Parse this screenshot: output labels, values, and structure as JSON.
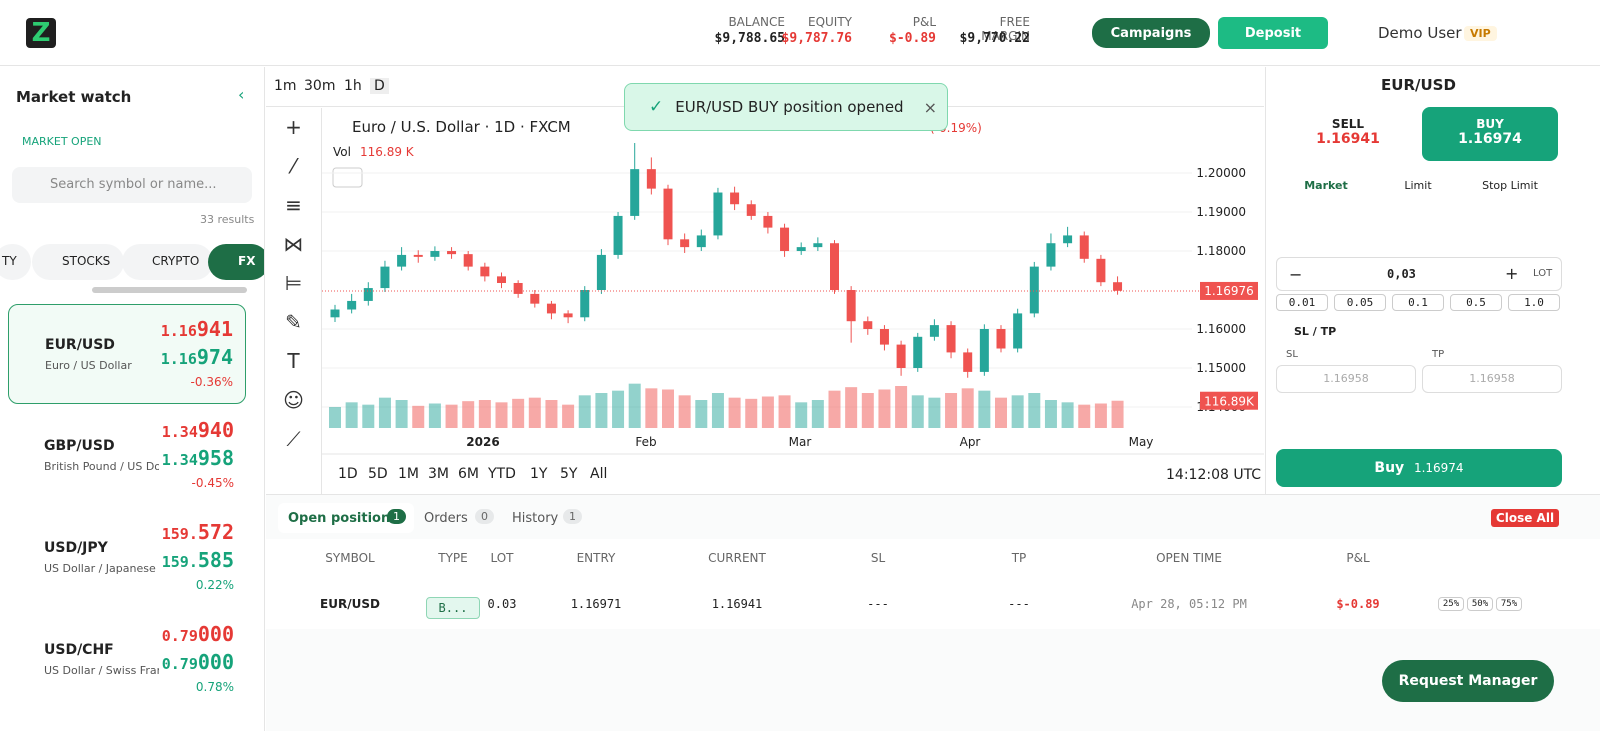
{
  "header": {
    "stats": [
      {
        "label": "BALANCE",
        "value": "$9,788.65"
      },
      {
        "label": "EQUITY",
        "value": "$9,787.76"
      },
      {
        "label": "P&L",
        "value": "$-0.89"
      },
      {
        "label": "FREE MARGIN",
        "value": "$9,770.22"
      }
    ],
    "campaigns": "Campaigns",
    "deposit": "Deposit",
    "user": "Demo User",
    "badge": "VIP"
  },
  "sidebar": {
    "title": "Market watch",
    "status": "MARKET OPEN",
    "search": "Search symbol or name...",
    "results": "33 results",
    "tabs": [
      "TY",
      "STOCKS",
      "CRYPTO",
      "FX"
    ],
    "items": [
      {
        "symbol": "EUR/USD",
        "name": "Euro / US Dollar",
        "bid": {
          "main": "1.16",
          "pips": "941"
        },
        "ask": {
          "main": "1.16",
          "pips": "974"
        },
        "change": "-0.36%"
      },
      {
        "symbol": "GBP/USD",
        "name": "British Pound / US Dollar",
        "bid": {
          "main": "1.34",
          "pips": "940"
        },
        "ask": {
          "main": "1.34",
          "pips": "958"
        },
        "change": "-0.45%"
      },
      {
        "symbol": "USD/JPY",
        "name": "US Dollar / Japanese Yen",
        "bid": {
          "main": "159.",
          "pips": "572"
        },
        "ask": {
          "main": "159.",
          "pips": "585"
        },
        "change": "0.22%"
      },
      {
        "symbol": "USD/CHF",
        "name": "US Dollar / Swiss Franc",
        "bid": {
          "main": "0.79",
          "pips": "000"
        },
        "ask": {
          "main": "0.79",
          "pips": "000"
        },
        "change": "0.78%"
      }
    ]
  },
  "toolbar": {
    "intervals": [
      "1m",
      "30m",
      "1h",
      "D"
    ]
  },
  "toast": "EUR/USD BUY position opened",
  "chart": {
    "type": "candlestick",
    "title": "Euro / U.S. Dollar · 1D · FXCM",
    "change": "(-0.19%)",
    "vol_label": "Vol",
    "vol_value": "116.89 K",
    "up_color": "#26a69a",
    "down_color": "#ef5350",
    "ylim": [
      1.1341,
      1.2136
    ],
    "yticks": [
      {
        "value": 1.2,
        "label": "1.20000"
      },
      {
        "value": 1.19,
        "label": "1.19000"
      },
      {
        "value": 1.18,
        "label": "1.18000"
      },
      {
        "value": 1.16,
        "label": "1.16000"
      },
      {
        "value": 1.15,
        "label": "1.15000"
      },
      {
        "value": 1.14,
        "label": "1.14000"
      }
    ],
    "current_price": 1.16976,
    "volume_lim": [
      0,
      300
    ],
    "volume_label": "116.89K",
    "x_labels": [
      "2026",
      "Feb",
      "Mar",
      "Apr",
      "May"
    ],
    "candles": [
      [
        1.163,
        1.1662,
        1.1618,
        1.165
      ],
      [
        1.165,
        1.169,
        1.164,
        1.1672
      ],
      [
        1.1672,
        1.172,
        1.166,
        1.1705
      ],
      [
        1.1705,
        1.1775,
        1.1695,
        1.176
      ],
      [
        1.176,
        1.181,
        1.175,
        1.179
      ],
      [
        1.179,
        1.1802,
        1.177,
        1.1785
      ],
      [
        1.1785,
        1.1812,
        1.1775,
        1.18
      ],
      [
        1.18,
        1.181,
        1.178,
        1.1792
      ],
      [
        1.1792,
        1.18,
        1.175,
        1.176
      ],
      [
        1.176,
        1.177,
        1.1722,
        1.1735
      ],
      [
        1.1735,
        1.1745,
        1.1705,
        1.1718
      ],
      [
        1.1718,
        1.1725,
        1.168,
        1.169
      ],
      [
        1.169,
        1.17,
        1.1655,
        1.1665
      ],
      [
        1.1665,
        1.1672,
        1.1625,
        1.164
      ],
      [
        1.164,
        1.1648,
        1.1615,
        1.163
      ],
      [
        1.163,
        1.171,
        1.162,
        1.17
      ],
      [
        1.17,
        1.1805,
        1.169,
        1.179
      ],
      [
        1.179,
        1.19,
        1.178,
        1.189
      ],
      [
        1.189,
        1.2077,
        1.188,
        1.201
      ],
      [
        1.201,
        1.204,
        1.1945,
        1.196
      ],
      [
        1.196,
        1.197,
        1.1815,
        1.183
      ],
      [
        1.183,
        1.1845,
        1.1795,
        1.181
      ],
      [
        1.181,
        1.1855,
        1.18,
        1.184
      ],
      [
        1.184,
        1.1962,
        1.183,
        1.195
      ],
      [
        1.195,
        1.1965,
        1.1905,
        1.192
      ],
      [
        1.192,
        1.193,
        1.188,
        1.189
      ],
      [
        1.189,
        1.19,
        1.1845,
        1.186
      ],
      [
        1.186,
        1.187,
        1.1785,
        1.18
      ],
      [
        1.18,
        1.1822,
        1.179,
        1.181
      ],
      [
        1.181,
        1.1835,
        1.18,
        1.182
      ],
      [
        1.182,
        1.1828,
        1.169,
        1.17
      ],
      [
        1.17,
        1.171,
        1.1565,
        1.162
      ],
      [
        1.162,
        1.1632,
        1.1585,
        1.16
      ],
      [
        1.16,
        1.161,
        1.1545,
        1.156
      ],
      [
        1.156,
        1.157,
        1.148,
        1.15
      ],
      [
        1.15,
        1.159,
        1.149,
        1.158
      ],
      [
        1.158,
        1.1625,
        1.157,
        1.161
      ],
      [
        1.161,
        1.162,
        1.1525,
        1.154
      ],
      [
        1.154,
        1.155,
        1.1475,
        1.149
      ],
      [
        1.149,
        1.1612,
        1.148,
        1.16
      ],
      [
        1.16,
        1.161,
        1.154,
        1.155
      ],
      [
        1.155,
        1.1652,
        1.154,
        1.164
      ],
      [
        1.164,
        1.1772,
        1.163,
        1.176
      ],
      [
        1.176,
        1.1845,
        1.175,
        1.182
      ],
      [
        1.182,
        1.1862,
        1.181,
        1.184
      ],
      [
        1.184,
        1.185,
        1.177,
        1.178
      ],
      [
        1.178,
        1.179,
        1.171,
        1.172
      ],
      [
        1.172,
        1.1735,
        1.1688,
        1.1698
      ]
    ],
    "volumes": [
      90,
      110,
      100,
      130,
      120,
      95,
      105,
      100,
      115,
      120,
      110,
      125,
      130,
      120,
      100,
      140,
      150,
      160,
      190,
      170,
      165,
      140,
      120,
      150,
      130,
      125,
      135,
      140,
      110,
      120,
      160,
      175,
      150,
      165,
      180,
      140,
      130,
      150,
      170,
      160,
      130,
      140,
      150,
      120,
      110,
      100,
      105,
      116.89
    ]
  },
  "ranges": [
    "1D",
    "5D",
    "1M",
    "3M",
    "6M",
    "YTD",
    "1Y",
    "5Y",
    "All"
  ],
  "clock": "14:12:08 UTC",
  "order": {
    "symbol": "EUR/USD",
    "sell_label": "SELL",
    "sell": "1.16941",
    "buy_label": "BUY",
    "buy": "1.16974",
    "types": [
      "Market",
      "Limit",
      "Stop Limit"
    ],
    "lot": "0,03",
    "lot_unit": "LOT",
    "presets": [
      "0.01",
      "0.05",
      "0.1",
      "0.5",
      "1.0"
    ],
    "sltp": "SL / TP",
    "sl": "SL",
    "tp": "TP",
    "sl_value": "1.16958",
    "tp_value": "1.16958",
    "submit": "Buy",
    "submit_price": "1.16974"
  },
  "positions": {
    "tabs": [
      {
        "label": "Open positions",
        "count": "1"
      },
      {
        "label": "Orders",
        "count": "0"
      },
      {
        "label": "History",
        "count": "1"
      }
    ],
    "close_all": "Close All",
    "columns": [
      "SYMBOL",
      "TYPE",
      "LOT",
      "ENTRY",
      "CURRENT",
      "SL",
      "TP",
      "OPEN TIME",
      "P&L"
    ],
    "rows": [
      [
        "EUR/USD",
        "B...",
        "0.03",
        "1.16971",
        "1.16941",
        "---",
        "---",
        "Apr 28, 05:12 PM",
        "$-0.89"
      ]
    ],
    "partials": [
      "25%",
      "50%",
      "75%"
    ]
  },
  "request_manager": "Request Manager"
}
